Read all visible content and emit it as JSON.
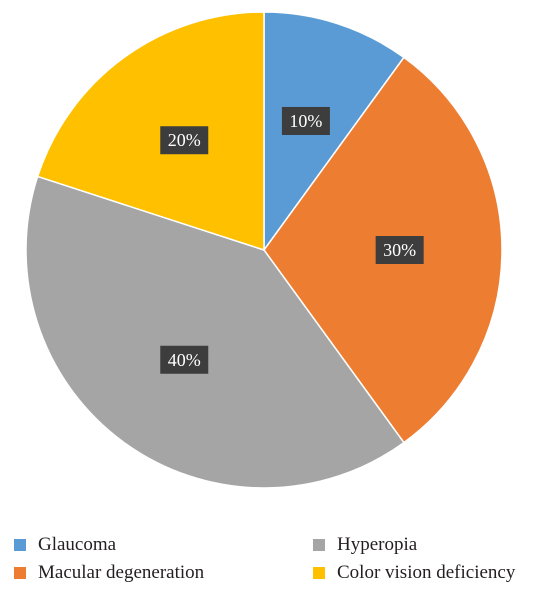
{
  "chart_data": {
    "type": "pie",
    "title": "",
    "start_angle_deg": 90,
    "direction": "clockwise",
    "legend_position": "bottom",
    "slices": [
      {
        "name": "Glaucoma",
        "value": 10,
        "label": "10%",
        "color": "#5b9bd5"
      },
      {
        "name": "Macular degeneration",
        "value": 30,
        "label": "30%",
        "color": "#ed7d31"
      },
      {
        "name": "Hyperopia",
        "value": 40,
        "label": "40%",
        "color": "#a5a5a5"
      },
      {
        "name": "Color vision deficiency",
        "value": 20,
        "label": "20%",
        "color": "#ffc000"
      }
    ]
  },
  "legend": {
    "items": [
      {
        "label": "Glaucoma",
        "color": "#5b9bd5"
      },
      {
        "label": "Macular degeneration",
        "color": "#ed7d31"
      },
      {
        "label": "Hyperopia",
        "color": "#a5a5a5"
      },
      {
        "label": "Color vision deficiency",
        "color": "#ffc000"
      }
    ]
  }
}
